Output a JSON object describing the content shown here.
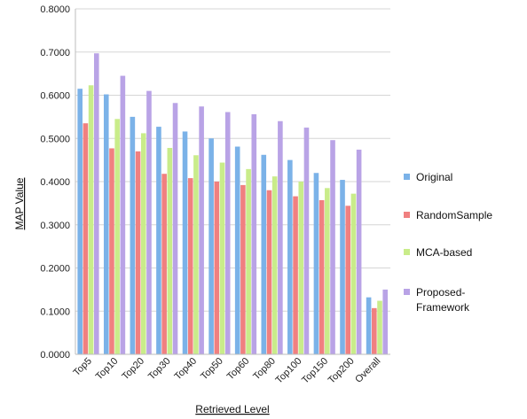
{
  "chart_data": {
    "type": "bar",
    "categories": [
      "Top5",
      "Top10",
      "Top20",
      "Top30",
      "Top40",
      "Top50",
      "Top60",
      "Top80",
      "Top100",
      "Top150",
      "Top200",
      "Overall"
    ],
    "series": [
      {
        "name": "Original",
        "color": "#7bb2e8",
        "values": [
          0.615,
          0.602,
          0.55,
          0.527,
          0.516,
          0.5,
          0.481,
          0.462,
          0.45,
          0.42,
          0.404,
          0.132
        ]
      },
      {
        "name": "RandomSample",
        "color": "#f08080",
        "values": [
          0.535,
          0.477,
          0.47,
          0.418,
          0.408,
          0.4,
          0.392,
          0.38,
          0.366,
          0.357,
          0.344,
          0.107
        ]
      },
      {
        "name": "MCA-based",
        "color": "#c9ec8a",
        "values": [
          0.623,
          0.545,
          0.512,
          0.478,
          0.461,
          0.444,
          0.429,
          0.412,
          0.4,
          0.385,
          0.372,
          0.124
        ]
      },
      {
        "name": "Proposed-Framework",
        "color": "#b9a3e6",
        "values": [
          0.697,
          0.645,
          0.61,
          0.582,
          0.574,
          0.561,
          0.556,
          0.54,
          0.525,
          0.496,
          0.474,
          0.15
        ]
      }
    ],
    "xlabel": "Retrieved Level",
    "ylabel": "MAP Value",
    "ylim": [
      0,
      0.8
    ],
    "yticks": [
      "0.0000",
      "0.1000",
      "0.2000",
      "0.3000",
      "0.4000",
      "0.5000",
      "0.6000",
      "0.7000",
      "0.8000"
    ],
    "grid": true,
    "legend": {
      "position": "right",
      "entries": [
        {
          "lines": [
            "Original"
          ]
        },
        {
          "lines": [
            "RandomSample"
          ]
        },
        {
          "lines": [
            "MCA-based"
          ]
        },
        {
          "lines": [
            "Proposed-",
            "Framework"
          ]
        }
      ]
    }
  }
}
